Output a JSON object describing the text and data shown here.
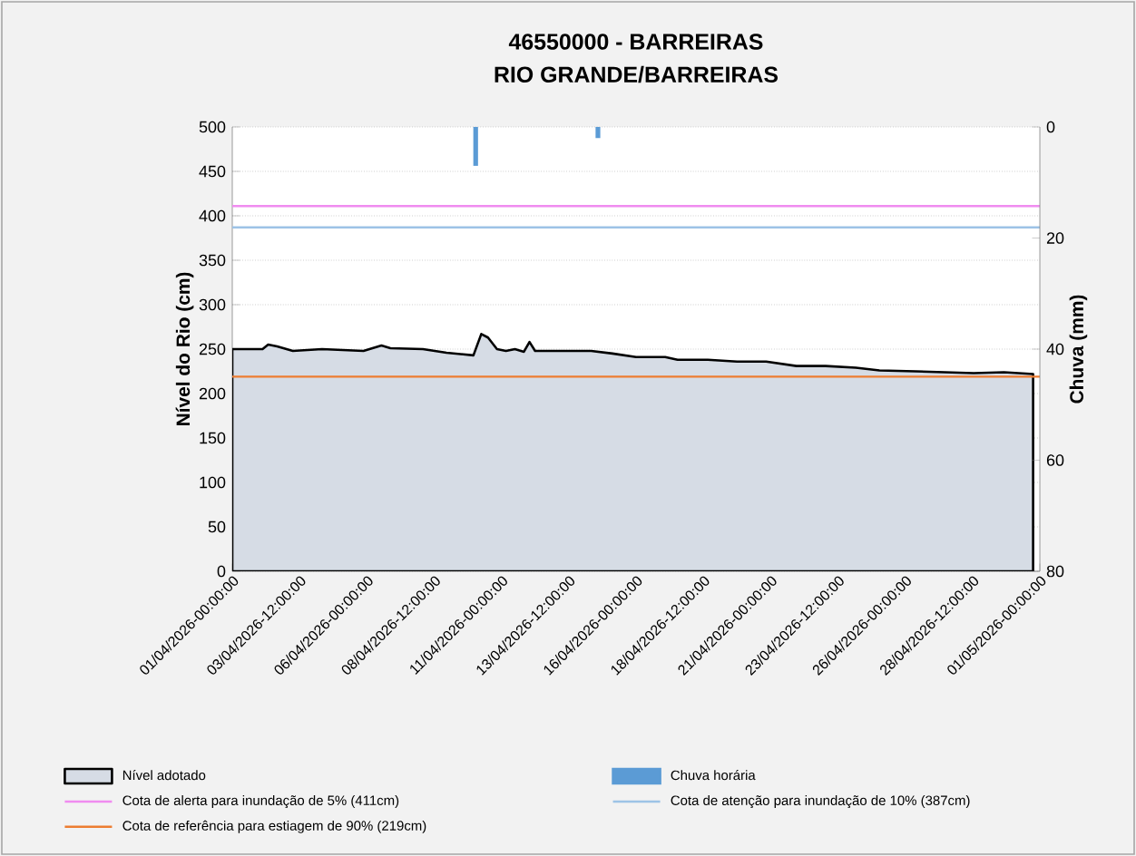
{
  "chart_data": {
    "type": "area",
    "title": "46550000 - BARREIRAS",
    "subtitle": "RIO GRANDE/BARREIRAS",
    "ylabel": "Nível do Rio (cm)",
    "y2label": "Chuva (mm)",
    "xlim": [
      "2026-04-01T00:00",
      "2026-05-01T00:00"
    ],
    "xticks": [
      {
        "value": "2026-04-01T00:00",
        "label": "01/04/2026-00:00:00"
      },
      {
        "value": "2026-04-03T12:00",
        "label": "03/04/2026-12:00:00"
      },
      {
        "value": "2026-04-06T00:00",
        "label": "06/04/2026-00:00:00"
      },
      {
        "value": "2026-04-08T12:00",
        "label": "08/04/2026-12:00:00"
      },
      {
        "value": "2026-04-11T00:00",
        "label": "11/04/2026-00:00:00"
      },
      {
        "value": "2026-04-13T12:00",
        "label": "13/04/2026-12:00:00"
      },
      {
        "value": "2026-04-16T00:00",
        "label": "16/04/2026-00:00:00"
      },
      {
        "value": "2026-04-18T12:00",
        "label": "18/04/2026-12:00:00"
      },
      {
        "value": "2026-04-21T00:00",
        "label": "21/04/2026-00:00:00"
      },
      {
        "value": "2026-04-23T12:00",
        "label": "23/04/2026-12:00:00"
      },
      {
        "value": "2026-04-26T00:00",
        "label": "26/04/2026-00:00:00"
      },
      {
        "value": "2026-04-28T12:00",
        "label": "28/04/2026-12:00:00"
      },
      {
        "value": "2026-05-01T00:00",
        "label": "01/05/2026-00:00:00"
      }
    ],
    "ylim": [
      0,
      500
    ],
    "yticks": [
      0,
      50,
      100,
      150,
      200,
      250,
      300,
      350,
      400,
      450,
      500
    ],
    "y2lim": [
      80,
      0
    ],
    "y2ticks": [
      0,
      20,
      40,
      60,
      80
    ],
    "grid": "y",
    "legend": "bottom",
    "marker": "none",
    "series": [
      {
        "name": "Nível adotado",
        "color": "#d6dce5",
        "x": [
          "2026-04-01T00:00",
          "2026-04-02T03:00",
          "2026-04-02T08:00",
          "2026-04-02T16:00",
          "2026-04-03T06:00",
          "2026-04-04T08:00",
          "2026-04-05T21:00",
          "2026-04-06T13:00",
          "2026-04-06T21:00",
          "2026-04-08T02:00",
          "2026-04-08T23:00",
          "2026-04-09T23:00",
          "2026-04-10T06:00",
          "2026-04-10T12:00",
          "2026-04-10T20:00",
          "2026-04-11T04:00",
          "2026-04-11T12:00",
          "2026-04-11T20:00",
          "2026-04-12T01:00",
          "2026-04-12T06:00",
          "2026-04-13T03:00",
          "2026-04-14T08:00",
          "2026-04-15T03:00",
          "2026-04-16T00:00",
          "2026-04-17T02:00",
          "2026-04-17T13:00",
          "2026-04-18T16:00",
          "2026-04-19T18:00",
          "2026-04-20T20:00",
          "2026-04-21T23:00",
          "2026-04-23T01:00",
          "2026-04-24T04:00",
          "2026-04-25T01:00",
          "2026-04-26T09:00",
          "2026-04-27T11:00",
          "2026-04-28T13:00",
          "2026-04-29T16:00",
          "2026-04-30T18:00"
        ],
        "values": [
          250,
          250,
          255,
          253,
          248,
          250,
          248,
          254,
          251,
          250,
          246,
          243,
          267,
          263,
          250,
          248,
          250,
          247,
          258,
          248,
          248,
          248,
          245,
          241,
          241,
          238,
          238,
          236,
          236,
          231,
          231,
          229,
          226,
          225,
          224,
          223,
          224,
          222
        ]
      },
      {
        "name": "Chuva horária",
        "type": "bar",
        "axis": "y2",
        "color": "#5b9bd5",
        "x": [
          "2026-04-10T01:00",
          "2026-04-14T14:00"
        ],
        "values": [
          7,
          2
        ]
      }
    ],
    "ref_lines": [
      {
        "axis": "y",
        "value": 411,
        "label": "Cota de alerta para inundação de 5% (411cm)",
        "color": "#f08cf0"
      },
      {
        "axis": "y",
        "value": 387,
        "label": "Cota de atenção para inundação de 10% (387cm)",
        "color": "#9dc3e6"
      },
      {
        "axis": "y",
        "value": 219,
        "label": "Cota de referência para estiagem de 90% (219cm)",
        "color": "#ed7d31"
      }
    ]
  }
}
